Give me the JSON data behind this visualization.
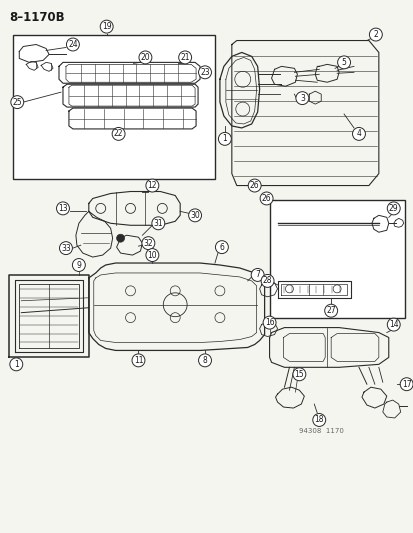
{
  "title": "8–1170B",
  "bg_color": "#f5f5f0",
  "line_color": "#2a2a2a",
  "text_color": "#1a1a1a",
  "watermark": "94308  1170",
  "figsize": [
    4.14,
    5.33
  ],
  "dpi": 100
}
